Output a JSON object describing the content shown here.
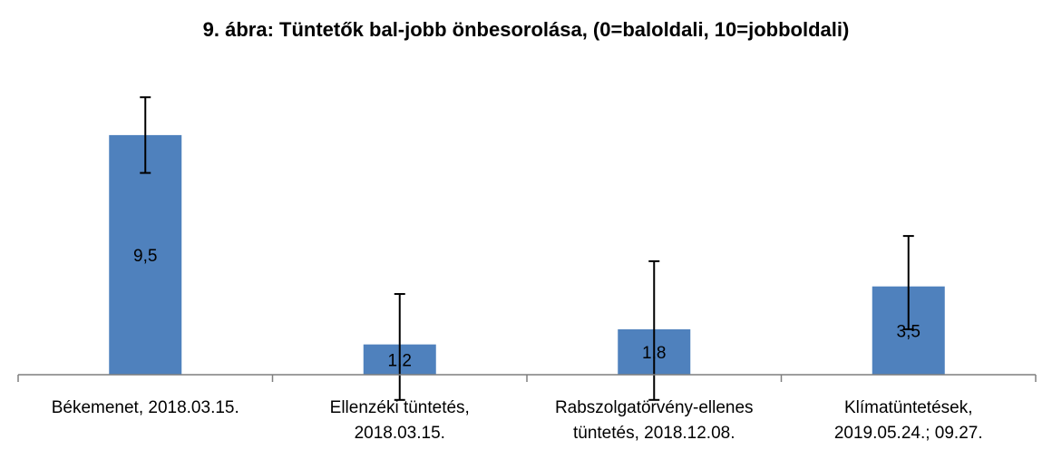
{
  "chart_data": {
    "type": "bar",
    "title": "9. ábra: Tüntetők bal-jobb önbesorolása, (0=baloldali, 10=jobboldali)",
    "xlabel": "",
    "ylabel": "",
    "categories": [
      [
        "Békemenet, 2018.03.15."
      ],
      [
        "Ellenzéki tüntetés,",
        "2018.03.15."
      ],
      [
        "Rabszolgatörvény-ellenes",
        "tüntetés, 2018.12.08."
      ],
      [
        "Klímatüntetések,",
        "2019.05.24.; 09.27."
      ]
    ],
    "values": [
      9.5,
      1.2,
      1.8,
      3.5
    ],
    "data_labels": [
      "9,5",
      "1,2",
      "1,8",
      "3,5"
    ],
    "error_bars": [
      {
        "low": 8.0,
        "high": 11.0
      },
      {
        "low": -1.0,
        "high": 3.2
      },
      {
        "low": -1.0,
        "high": 4.5
      },
      {
        "low": 1.8,
        "high": 5.5
      }
    ],
    "ylim": [
      0,
      12
    ],
    "grid": false,
    "legend": "none",
    "bar_color": "#4f81bd",
    "error_bar_color": "#000000",
    "axis_color": "#7f7f7f"
  }
}
